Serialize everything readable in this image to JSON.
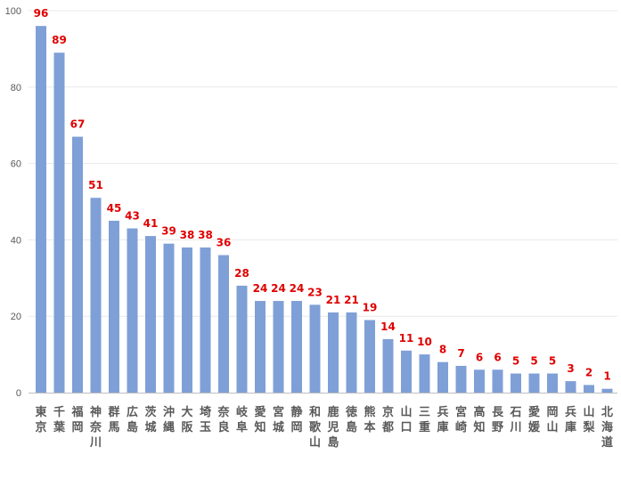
{
  "chart_data": {
    "type": "bar",
    "title": "",
    "xlabel": "",
    "ylabel": "",
    "ylim": [
      0,
      100
    ],
    "yticks": [
      0,
      20,
      40,
      60,
      80,
      100
    ],
    "grid": true,
    "categories": [
      "東京",
      "千葉",
      "福岡",
      "神奈川",
      "群馬",
      "広島",
      "茨城",
      "沖縄",
      "大阪",
      "埼玉",
      "奈良",
      "岐阜",
      "愛知",
      "宮城",
      "静岡",
      "和歌山",
      "鹿児島",
      "徳島",
      "熊本",
      "京都",
      "山口",
      "三重",
      "兵庫",
      "宮崎",
      "高知",
      "長野",
      "石川",
      "愛媛",
      "岡山",
      "兵庫",
      "山梨",
      "北海道"
    ],
    "values": [
      96,
      89,
      67,
      51,
      45,
      43,
      41,
      39,
      38,
      38,
      36,
      28,
      24,
      24,
      24,
      23,
      21,
      21,
      19,
      14,
      11,
      10,
      8,
      7,
      6,
      6,
      5,
      5,
      5,
      3,
      2,
      1
    ],
    "bar_color": "#7f9fd7",
    "label_color": "#e00000",
    "grid_color": "#e8e8e8",
    "axis_color": "#bfbfbf"
  }
}
